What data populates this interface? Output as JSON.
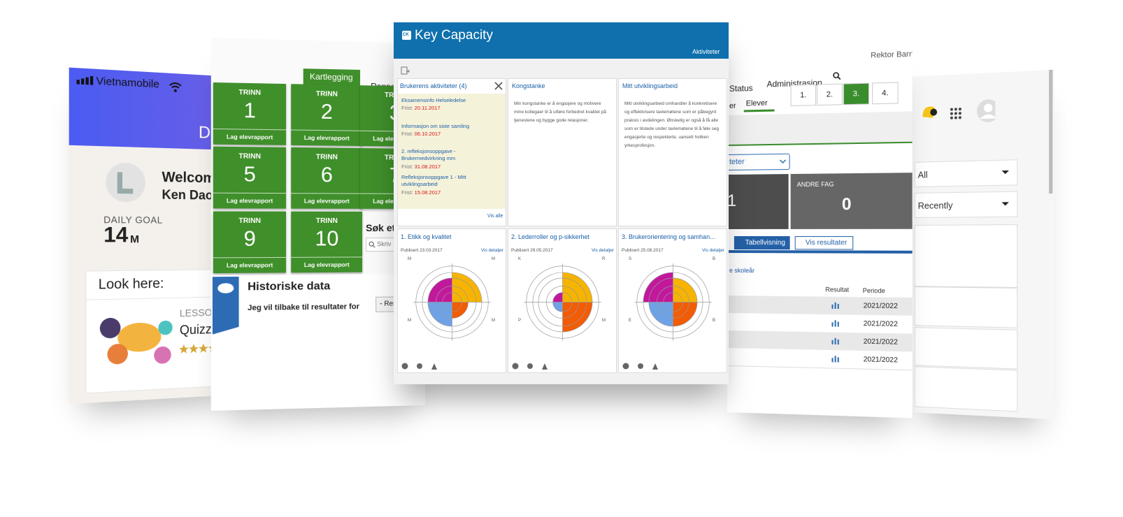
{
  "phone": {
    "carrier": "Vietnamobile",
    "header": "Da",
    "welcome": "Welcome",
    "name": "Ken Dao",
    "goal_label": "DAILY GOAL",
    "goal_value": 14,
    "goal_unit": "M",
    "card_title": "Look here:",
    "lesson_label": "LESSON",
    "lesson_title": "Quizze"
  },
  "trinn": {
    "tab_active": "Kartlegging",
    "tab_other": "Rappor",
    "tiles": [
      {
        "label": "TRINN",
        "number": 1,
        "action": "Lag elevrapport"
      },
      {
        "label": "TRINN",
        "number": 2,
        "action": "Lag elevrapport"
      },
      {
        "label": "TRINN",
        "number": 3,
        "action": "Lag elevrapport"
      },
      {
        "label": "TRINN",
        "number": 5,
        "action": "Lag elevrapport"
      },
      {
        "label": "TRINN",
        "number": 6,
        "action": "Lag elevrapport"
      },
      {
        "label": "TRINN",
        "number": 7,
        "action": "Lag elevrapport"
      },
      {
        "label": "TRINN",
        "number": 9,
        "action": "Lag elevrapport"
      },
      {
        "label": "TRINN",
        "number": 10,
        "action": "Lag elevrapport"
      }
    ],
    "search_label": "Søk ett",
    "search_placeholder": "Skriv",
    "history_title": "Historiske data",
    "history_text": "Jeg vil tilbake til resultater for",
    "history_select": "- Res"
  },
  "key_capacity": {
    "logo": "CK",
    "title": "Key Capacity",
    "nav": "Aktiviteter",
    "activities": {
      "title": "Brukerens aktiviteter (4)",
      "items": [
        {
          "name": "Eksamensinfo Helseledelse",
          "due_label": "Frist:",
          "due": "20.11.2017"
        },
        {
          "name": "Informasjon om siste samling",
          "due_label": "Frist:",
          "due": "06.10.2017"
        },
        {
          "name": "2. refleksjonsoppgave - Brukermedvirkning mm",
          "due_label": "Frist:",
          "due": "31.08.2017"
        },
        {
          "name": "Refleksjonsoppgave 1 - Mitt utviklingsarbeid",
          "due_label": "Frist:",
          "due": "15.08.2017"
        }
      ],
      "more": "Vis alle"
    },
    "kongstanke": {
      "title": "Kongstanke",
      "text": "Min kongstanke er å engasjere og motivere mine kollegaer til å utføre forbedret kvalitet på tjenestene og bygge gode relasjoner."
    },
    "utvikling": {
      "title": "Mitt utviklingsarbeid",
      "text": "Mitt utviklingsarbeid omhandler å konkretisere og effektivisere tavlemøtene som er påbegynt praksis i avdelingen. Ønskelig er også å få alle som er tilstede under tavlemøtene til å føle seg engasjerte og respekterte, uansett hvilken yrkesprofesjon."
    },
    "results": [
      {
        "title": "1. Etikk og kvalitet",
        "published": "Publisert 23.03.2017",
        "details": "Vis detaljer",
        "labels": [
          "M",
          "M",
          "M",
          "M"
        ]
      },
      {
        "title": "2. Lederroller og p-sikkerhet",
        "published": "Publisert 29.05.2017",
        "details": "Vis detaljer",
        "labels": [
          "K",
          "R",
          "P",
          "M"
        ]
      },
      {
        "title": "3. Brukerorientering og samhan...",
        "published": "Publisert 25.08.2017",
        "details": "Vis detaljer",
        "labels": [
          "S",
          "B",
          "E",
          "B"
        ]
      }
    ]
  },
  "school": {
    "user": "Rektor Barn",
    "tab_status": "Status",
    "tab_admin": "Administrasjon",
    "tab_prev": "er",
    "tab_students": "Elever",
    "grades": [
      "1.",
      "2.",
      "3.",
      "4."
    ],
    "dropdown": "teter",
    "tile_left": "1",
    "tile_label": "ANDRE FAG",
    "tile_value": "0",
    "btn_table": "Tabellvisning",
    "btn_results": "Vis resultater",
    "year_link": "e skoleår",
    "col_result": "Resultat",
    "col_period": "Periode",
    "periods": [
      "2021/2022",
      "2021/2022",
      "2021/2022",
      "2021/2022"
    ]
  },
  "portal": {
    "filter": "All",
    "sort": "Recently"
  }
}
